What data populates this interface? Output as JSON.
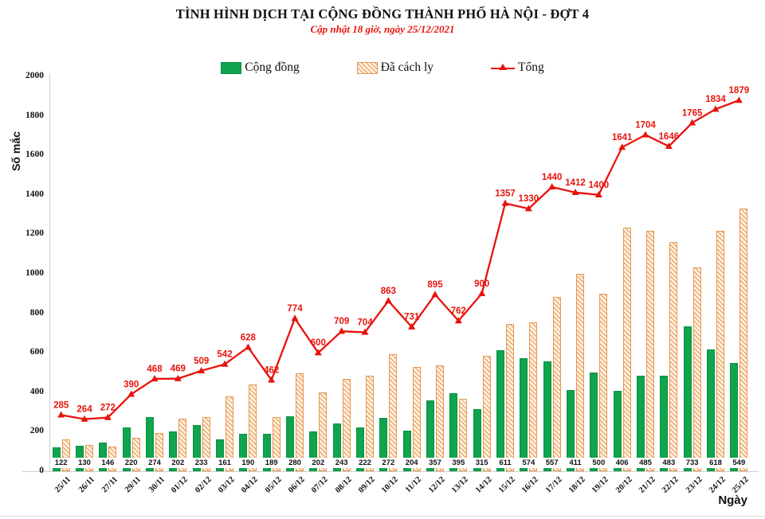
{
  "title": "TÌNH HÌNH DỊCH TẠI CỘNG ĐỒNG THÀNH PHỐ HÀ NỘI - ĐỢT 4",
  "subtitle": "Cập nhật 18 giờ, ngày 25/12/2021",
  "legend": {
    "items": [
      {
        "label": "Cộng đồng",
        "swatch": "green-bar"
      },
      {
        "label": "Đã cách ly",
        "swatch": "hatched-bar"
      },
      {
        "label": "Tổng",
        "swatch": "red-line-triangle"
      }
    ]
  },
  "colors": {
    "red": "#e8130c",
    "green": "#0fa44d",
    "green_border": "#0b8f41",
    "hatch_stripe": "#efa76a",
    "hatch_bg": "#fdf3e3",
    "hatch_border": "#e09a55",
    "axis": "#cfcfcf",
    "text": "#111111"
  },
  "chart_data": {
    "type": "bar+line",
    "title": "TÌNH HÌNH DỊCH TẠI CỘNG ĐỒNG THÀNH PHỐ HÀ NỘI - ĐỢT 4",
    "subtitle": "Cập nhật 18 giờ, ngày 25/12/2021",
    "xlabel": "Ngày",
    "ylabel": "Số mắc",
    "ylim": [
      0,
      2000
    ],
    "ytick_step": 200,
    "grid": false,
    "legend_position": "top",
    "categories": [
      "25/11",
      "26/11",
      "27/11",
      "29/11",
      "30/11",
      "01/12",
      "02/12",
      "03/12",
      "04/12",
      "05/12",
      "06/12",
      "07/12",
      "08/12",
      "09/12",
      "10/12",
      "11/12",
      "12/12",
      "13/12",
      "14/12",
      "15/12",
      "16/12",
      "17/12",
      "18/12",
      "19/12",
      "20/12",
      "21/12",
      "22/12",
      "23/12",
      "24/12",
      "25/12"
    ],
    "series": [
      {
        "name": "Cộng đồng",
        "type": "bar",
        "style": "solid-green",
        "labels_shown": true,
        "values": [
          122,
          130,
          146,
          220,
          274,
          202,
          233,
          161,
          190,
          189,
          280,
          202,
          243,
          222,
          272,
          204,
          357,
          395,
          315,
          611,
          574,
          557,
          411,
          500,
          406,
          485,
          483,
          733,
          618,
          549
        ]
      },
      {
        "name": "Đã cách ly",
        "type": "bar",
        "style": "hatched-tan",
        "labels_shown": false,
        "note": "values estimated as Tổng minus Cộng đồng (bars unlabeled in image)",
        "values": [
          163,
          134,
          126,
          170,
          194,
          267,
          276,
          381,
          438,
          273,
          494,
          398,
          466,
          482,
          591,
          527,
          538,
          367,
          585,
          746,
          756,
          883,
          1001,
          900,
          1235,
          1219,
          1163,
          1032,
          1216,
          1330
        ]
      },
      {
        "name": "Tổng",
        "type": "line",
        "style": "red-triangle-markers",
        "labels_shown": true,
        "values": [
          285,
          264,
          272,
          390,
          468,
          469,
          509,
          542,
          628,
          462,
          774,
          600,
          709,
          704,
          863,
          731,
          895,
          762,
          900,
          1357,
          1330,
          1440,
          1412,
          1400,
          1641,
          1704,
          1646,
          1765,
          1834,
          1879
        ]
      }
    ]
  }
}
